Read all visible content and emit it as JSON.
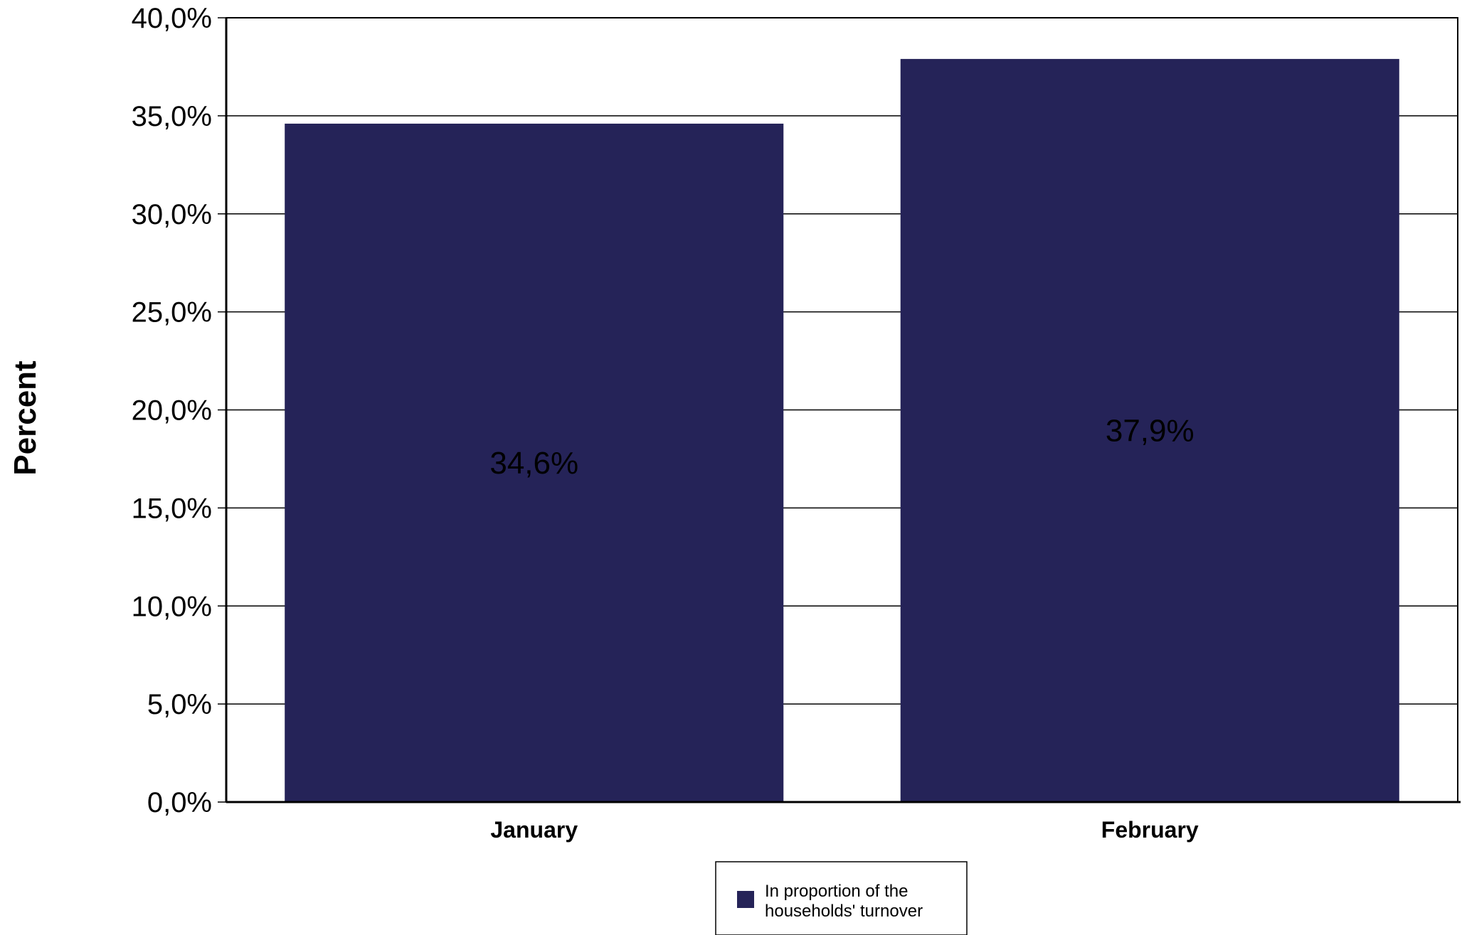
{
  "chart_data": {
    "type": "bar",
    "categories": [
      "January",
      "February"
    ],
    "series": [
      {
        "name": "In proportion of the households' turnover",
        "legend_lines": [
          "In proportion of the",
          "households' turnover"
        ],
        "values": [
          34.6,
          37.9
        ],
        "data_labels": [
          "34,6%",
          "37,9%"
        ],
        "color": "#252358"
      }
    ],
    "ylabel": "Percent",
    "xlabel": "",
    "ylim": [
      0,
      40
    ],
    "yticks": [
      0,
      5,
      10,
      15,
      20,
      25,
      30,
      35,
      40
    ],
    "ytick_labels": [
      "0,0%",
      "5,0%",
      "10,0%",
      "15,0%",
      "20,0%",
      "25,0%",
      "30,0%",
      "35,0%",
      "40,0%"
    ],
    "grid": true,
    "legend_position": "bottom-center"
  }
}
